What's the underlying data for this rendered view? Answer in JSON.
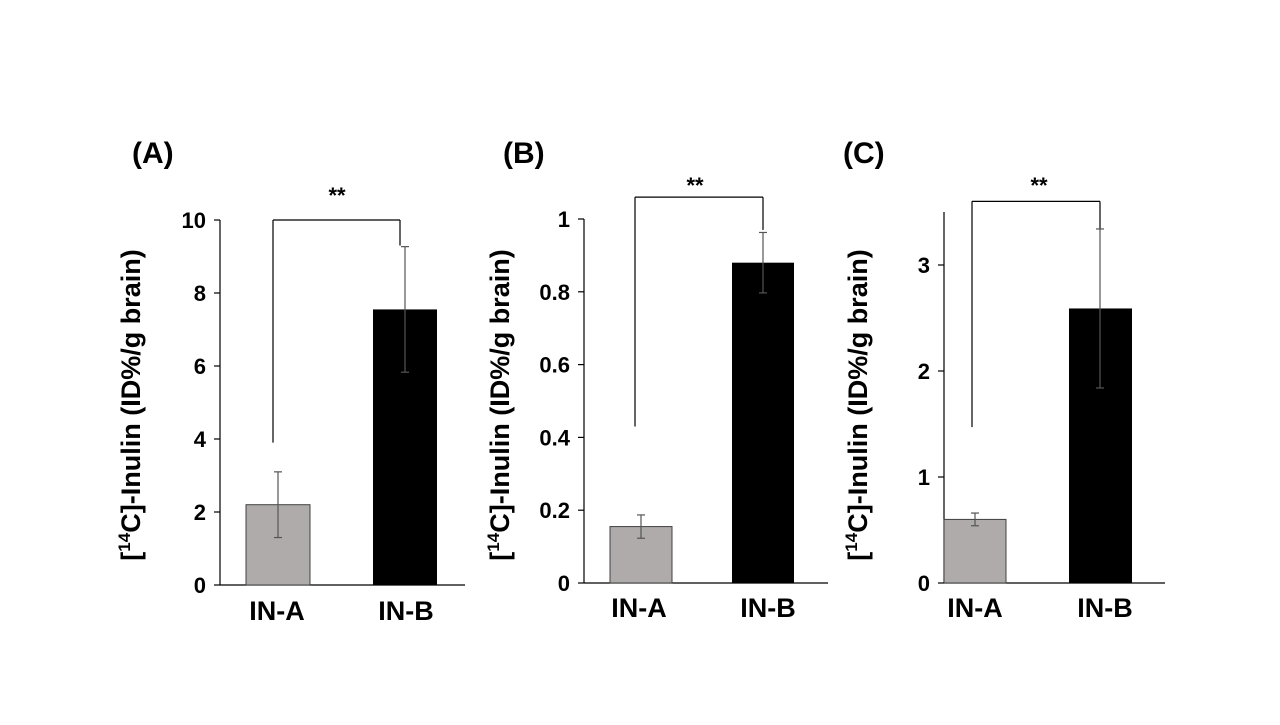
{
  "figure": {
    "colors": {
      "bar_a": "#afabab",
      "bar_b": "#000000",
      "text": "#000000"
    }
  },
  "chart_data": [
    {
      "type": "bar",
      "panel": "(A)",
      "categories": [
        "IN-A",
        "IN-B"
      ],
      "values": [
        2.2,
        7.55
      ],
      "errors": [
        0.9,
        1.72
      ],
      "ylabel_prefix": "[",
      "ylabel_sup": "14",
      "ylabel_rest": "C]-Inulin (ID%/g brain)",
      "ylim": [
        0,
        10
      ],
      "yticks": [
        0,
        2,
        4,
        6,
        8,
        10
      ],
      "ytick_labels": [
        "0",
        "2",
        "4",
        "6",
        "8",
        "10"
      ],
      "significance": "**",
      "bracket_left_y": 3.9,
      "bracket_right_y": 9.3,
      "bracket_top_y": 10.0
    },
    {
      "type": "bar",
      "panel": "(B)",
      "categories": [
        "IN-A",
        "IN-B"
      ],
      "values": [
        0.155,
        0.88
      ],
      "errors": [
        0.032,
        0.083
      ],
      "ylabel_prefix": "[",
      "ylabel_sup": "14",
      "ylabel_rest": "C]-Inulin (ID%/g brain)",
      "ylim": [
        0,
        1
      ],
      "yticks": [
        0,
        0.2,
        0.4,
        0.6,
        0.8,
        1
      ],
      "ytick_labels": [
        "0",
        "0.2",
        "0.4",
        "0.6",
        "0.8",
        "1"
      ],
      "significance": "**",
      "bracket_left_y": 0.43,
      "bracket_right_y": 0.97,
      "bracket_top_y": 1.06
    },
    {
      "type": "bar",
      "panel": "(C)",
      "categories": [
        "IN-A",
        "IN-B"
      ],
      "values": [
        0.6,
        2.59
      ],
      "errors": [
        0.06,
        0.75
      ],
      "ylabel_prefix": "[",
      "ylabel_sup": "14",
      "ylabel_rest": "C]-Inulin (ID%/g brain)",
      "ylim": [
        0,
        3.5
      ],
      "yticks": [
        0,
        1,
        2,
        3
      ],
      "ytick_labels": [
        "0",
        "1",
        "2",
        "3"
      ],
      "significance": "**",
      "bracket_left_y": 1.47,
      "bracket_right_y": 3.33,
      "bracket_top_y": 3.6
    }
  ]
}
